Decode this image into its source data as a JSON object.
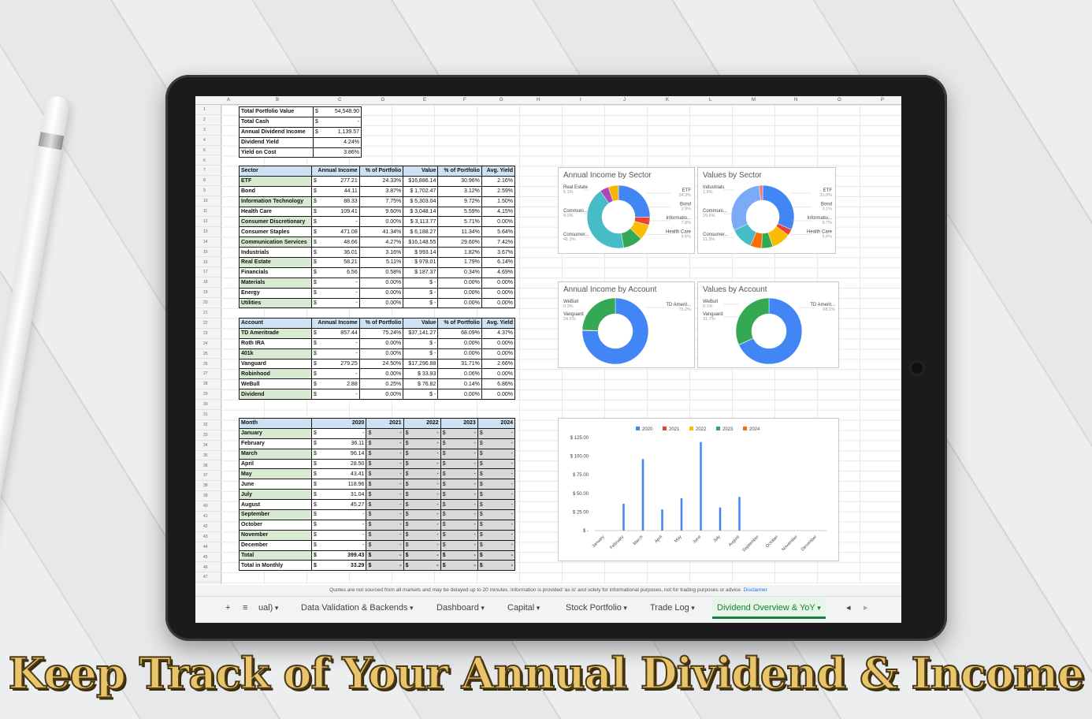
{
  "summary": [
    {
      "label": "Total Portfolio Value",
      "value": "54,548.90"
    },
    {
      "label": "Total Cash",
      "value": "-"
    },
    {
      "label": "Annual Dividend Income",
      "value": "1,139.57"
    },
    {
      "label": "Dividend Yield",
      "value": "4.24%"
    },
    {
      "label": "Yield on Cost",
      "value": "3.86%"
    }
  ],
  "sector_table": {
    "headers": [
      "Sector",
      "Annual Income",
      "% of Portfolio",
      "Value",
      "% of Portfolio",
      "Avg. Yield"
    ],
    "rows": [
      [
        "ETF",
        "277.21",
        "24.33%",
        "$16,886.14",
        "30.96%",
        "2.16%"
      ],
      [
        "Bond",
        "44.11",
        "3.87%",
        "$ 1,702.47",
        "3.12%",
        "2.59%"
      ],
      [
        "Information Technology",
        "88.33",
        "7.75%",
        "$ 5,303.04",
        "9.72%",
        "1.50%"
      ],
      [
        "Health Care",
        "109.41",
        "9.60%",
        "$ 3,048.14",
        "5.59%",
        "4.15%"
      ],
      [
        "Consumer Discretionary",
        "-",
        "0.00%",
        "$ 3,113.77",
        "5.71%",
        "0.00%"
      ],
      [
        "Consumer Staples",
        "471.08",
        "41.34%",
        "$ 6,188.27",
        "11.34%",
        "5.64%"
      ],
      [
        "Communication Services",
        "48.66",
        "4.27%",
        "$16,148.55",
        "29.60%",
        "7.42%"
      ],
      [
        "Industrials",
        "36.01",
        "3.16%",
        "$ 993.14",
        "1.82%",
        "3.67%"
      ],
      [
        "Real Estate",
        "58.21",
        "5.11%",
        "$ 978.01",
        "1.79%",
        "6.14%"
      ],
      [
        "Financials",
        "6.56",
        "0.58%",
        "$ 187.37",
        "0.34%",
        "4.69%"
      ],
      [
        "Materials",
        "-",
        "0.00%",
        "$ -",
        "0.00%",
        "0.00%"
      ],
      [
        "Energy",
        "-",
        "0.00%",
        "$ -",
        "0.00%",
        "0.00%"
      ],
      [
        "Utilities",
        "-",
        "0.00%",
        "$ -",
        "0.00%",
        "0.00%"
      ]
    ]
  },
  "account_table": {
    "headers": [
      "Account",
      "Annual Income",
      "% of Portfolio",
      "Value",
      "% of Portfolio",
      "Avg. Yield"
    ],
    "rows": [
      [
        "TD Ameritrade",
        "857.44",
        "75.24%",
        "$37,141.27",
        "68.09%",
        "4.37%"
      ],
      [
        "Roth IRA",
        "-",
        "0.00%",
        "$ -",
        "0.00%",
        "0.00%"
      ],
      [
        "401k",
        "-",
        "0.00%",
        "$ -",
        "0.00%",
        "0.00%"
      ],
      [
        "Vanguard",
        "279.25",
        "24.50%",
        "$17,296.88",
        "31.71%",
        "2.66%"
      ],
      [
        "Robinhood",
        "-",
        "0.00%",
        "$ 33.93",
        "0.06%",
        "0.00%"
      ],
      [
        "WeBull",
        "2.88",
        "0.25%",
        "$ 76.82",
        "0.14%",
        "6.86%"
      ],
      [
        "Dividend",
        "-",
        "0.00%",
        "$ -",
        "0.00%",
        "0.00%"
      ]
    ]
  },
  "month_table": {
    "headers": [
      "Month",
      "2020",
      "2021",
      "2022",
      "2023",
      "2024"
    ],
    "rows": [
      [
        "January",
        "-",
        "-",
        "-",
        "-",
        "-"
      ],
      [
        "February",
        "36.11",
        "-",
        "-",
        "-",
        "-"
      ],
      [
        "March",
        "96.14",
        "-",
        "-",
        "-",
        "-"
      ],
      [
        "April",
        "28.50",
        "-",
        "-",
        "-",
        "-"
      ],
      [
        "May",
        "43.41",
        "-",
        "-",
        "-",
        "-"
      ],
      [
        "June",
        "118.96",
        "-",
        "-",
        "-",
        "-"
      ],
      [
        "July",
        "31.04",
        "-",
        "-",
        "-",
        "-"
      ],
      [
        "August",
        "45.27",
        "-",
        "-",
        "-",
        "-"
      ],
      [
        "September",
        "-",
        "-",
        "-",
        "-",
        "-"
      ],
      [
        "October",
        "-",
        "-",
        "-",
        "-",
        "-"
      ],
      [
        "November",
        "-",
        "-",
        "-",
        "-",
        "-"
      ],
      [
        "December",
        "-",
        "-",
        "-",
        "-",
        "-"
      ],
      [
        "Total",
        "399.43",
        "-",
        "-",
        "-",
        "-"
      ],
      [
        "Total in Monthly",
        "33.29",
        "-",
        "-",
        "-",
        "-"
      ]
    ]
  },
  "column_letters": [
    "A",
    "B",
    "C",
    "D",
    "E",
    "F",
    "G",
    "H",
    "I",
    "J",
    "K",
    "L",
    "M",
    "N",
    "O",
    "P"
  ],
  "charts": {
    "income_sector": {
      "title": "Annual Income by Sector",
      "labels": [
        {
          "t": "Real Estate",
          "v": "5.1%"
        },
        {
          "t": "Communi...",
          "v": "4.3%"
        },
        {
          "t": "Consumer...",
          "v": "41.3%"
        },
        {
          "t": "ETF",
          "v": "24.3%"
        },
        {
          "t": "Bond",
          "v": "3.9%"
        },
        {
          "t": "Informatio...",
          "v": "7.8%"
        },
        {
          "t": "Health Care",
          "v": "9.6%"
        }
      ]
    },
    "values_sector": {
      "title": "Values by Sector",
      "labels": [
        {
          "t": "Industrials",
          "v": "1.8%"
        },
        {
          "t": "Communi...",
          "v": "29.6%"
        },
        {
          "t": "Consumer...",
          "v": "11.3%"
        },
        {
          "t": "Consumer...",
          "v": "5.7%"
        },
        {
          "t": "ETF",
          "v": "31.0%"
        },
        {
          "t": "Bond",
          "v": "3.1%"
        },
        {
          "t": "Informatio...",
          "v": "9.7%"
        },
        {
          "t": "Health Care",
          "v": "5.6%"
        }
      ]
    },
    "income_account": {
      "title": "Annual Income by Account",
      "labels": [
        {
          "t": "WeBull",
          "v": "0.3%"
        },
        {
          "t": "Vanguard",
          "v": "24.5%"
        },
        {
          "t": "TD Amerit...",
          "v": "75.2%"
        }
      ]
    },
    "values_account": {
      "title": "Values by Account",
      "labels": [
        {
          "t": "WeBull",
          "v": "0.1%"
        },
        {
          "t": "Vanguard",
          "v": "31.7%"
        },
        {
          "t": "TD Amerit...",
          "v": "68.1%"
        }
      ]
    }
  },
  "chart_data": {
    "type": "bar",
    "categories": [
      "January",
      "February",
      "March",
      "April",
      "May",
      "June",
      "July",
      "August",
      "September",
      "October",
      "November",
      "December"
    ],
    "series": [
      {
        "name": "2020",
        "values": [
          0,
          36.11,
          96.14,
          28.5,
          43.41,
          118.96,
          31.04,
          45.27,
          0,
          0,
          0,
          0
        ],
        "color": "#4285f4"
      },
      {
        "name": "2021",
        "values": [
          0,
          0,
          0,
          0,
          0,
          0,
          0,
          0,
          0,
          0,
          0,
          0
        ],
        "color": "#ea4335"
      },
      {
        "name": "2022",
        "values": [
          0,
          0,
          0,
          0,
          0,
          0,
          0,
          0,
          0,
          0,
          0,
          0
        ],
        "color": "#fbbc04"
      },
      {
        "name": "2023",
        "values": [
          0,
          0,
          0,
          0,
          0,
          0,
          0,
          0,
          0,
          0,
          0,
          0
        ],
        "color": "#34a853"
      },
      {
        "name": "2024",
        "values": [
          0,
          0,
          0,
          0,
          0,
          0,
          0,
          0,
          0,
          0,
          0,
          0
        ],
        "color": "#ff6d01"
      }
    ],
    "yticks": [
      "$ -",
      "$ 25.00",
      "$ 50.00",
      "$ 75.00",
      "$ 100.00",
      "$ 125.00"
    ],
    "ylim": [
      0,
      125
    ],
    "legend": "top"
  },
  "footer_note": "Quotes are not sourced from all markets and may be delayed up to 20 minutes. Information is provided 'as is' and solely for informational purposes, not for trading purposes or advice.",
  "footer_link": "Disclaimer",
  "tabs": [
    "+",
    "≡",
    "ual)",
    "Data Validation & Backends",
    "Dashboard",
    "Capital",
    "Stock Portfolio",
    "Trade Log",
    "Dividend Overview & YoY"
  ],
  "caption": "Keep Track of Your Annual Dividend & Income"
}
